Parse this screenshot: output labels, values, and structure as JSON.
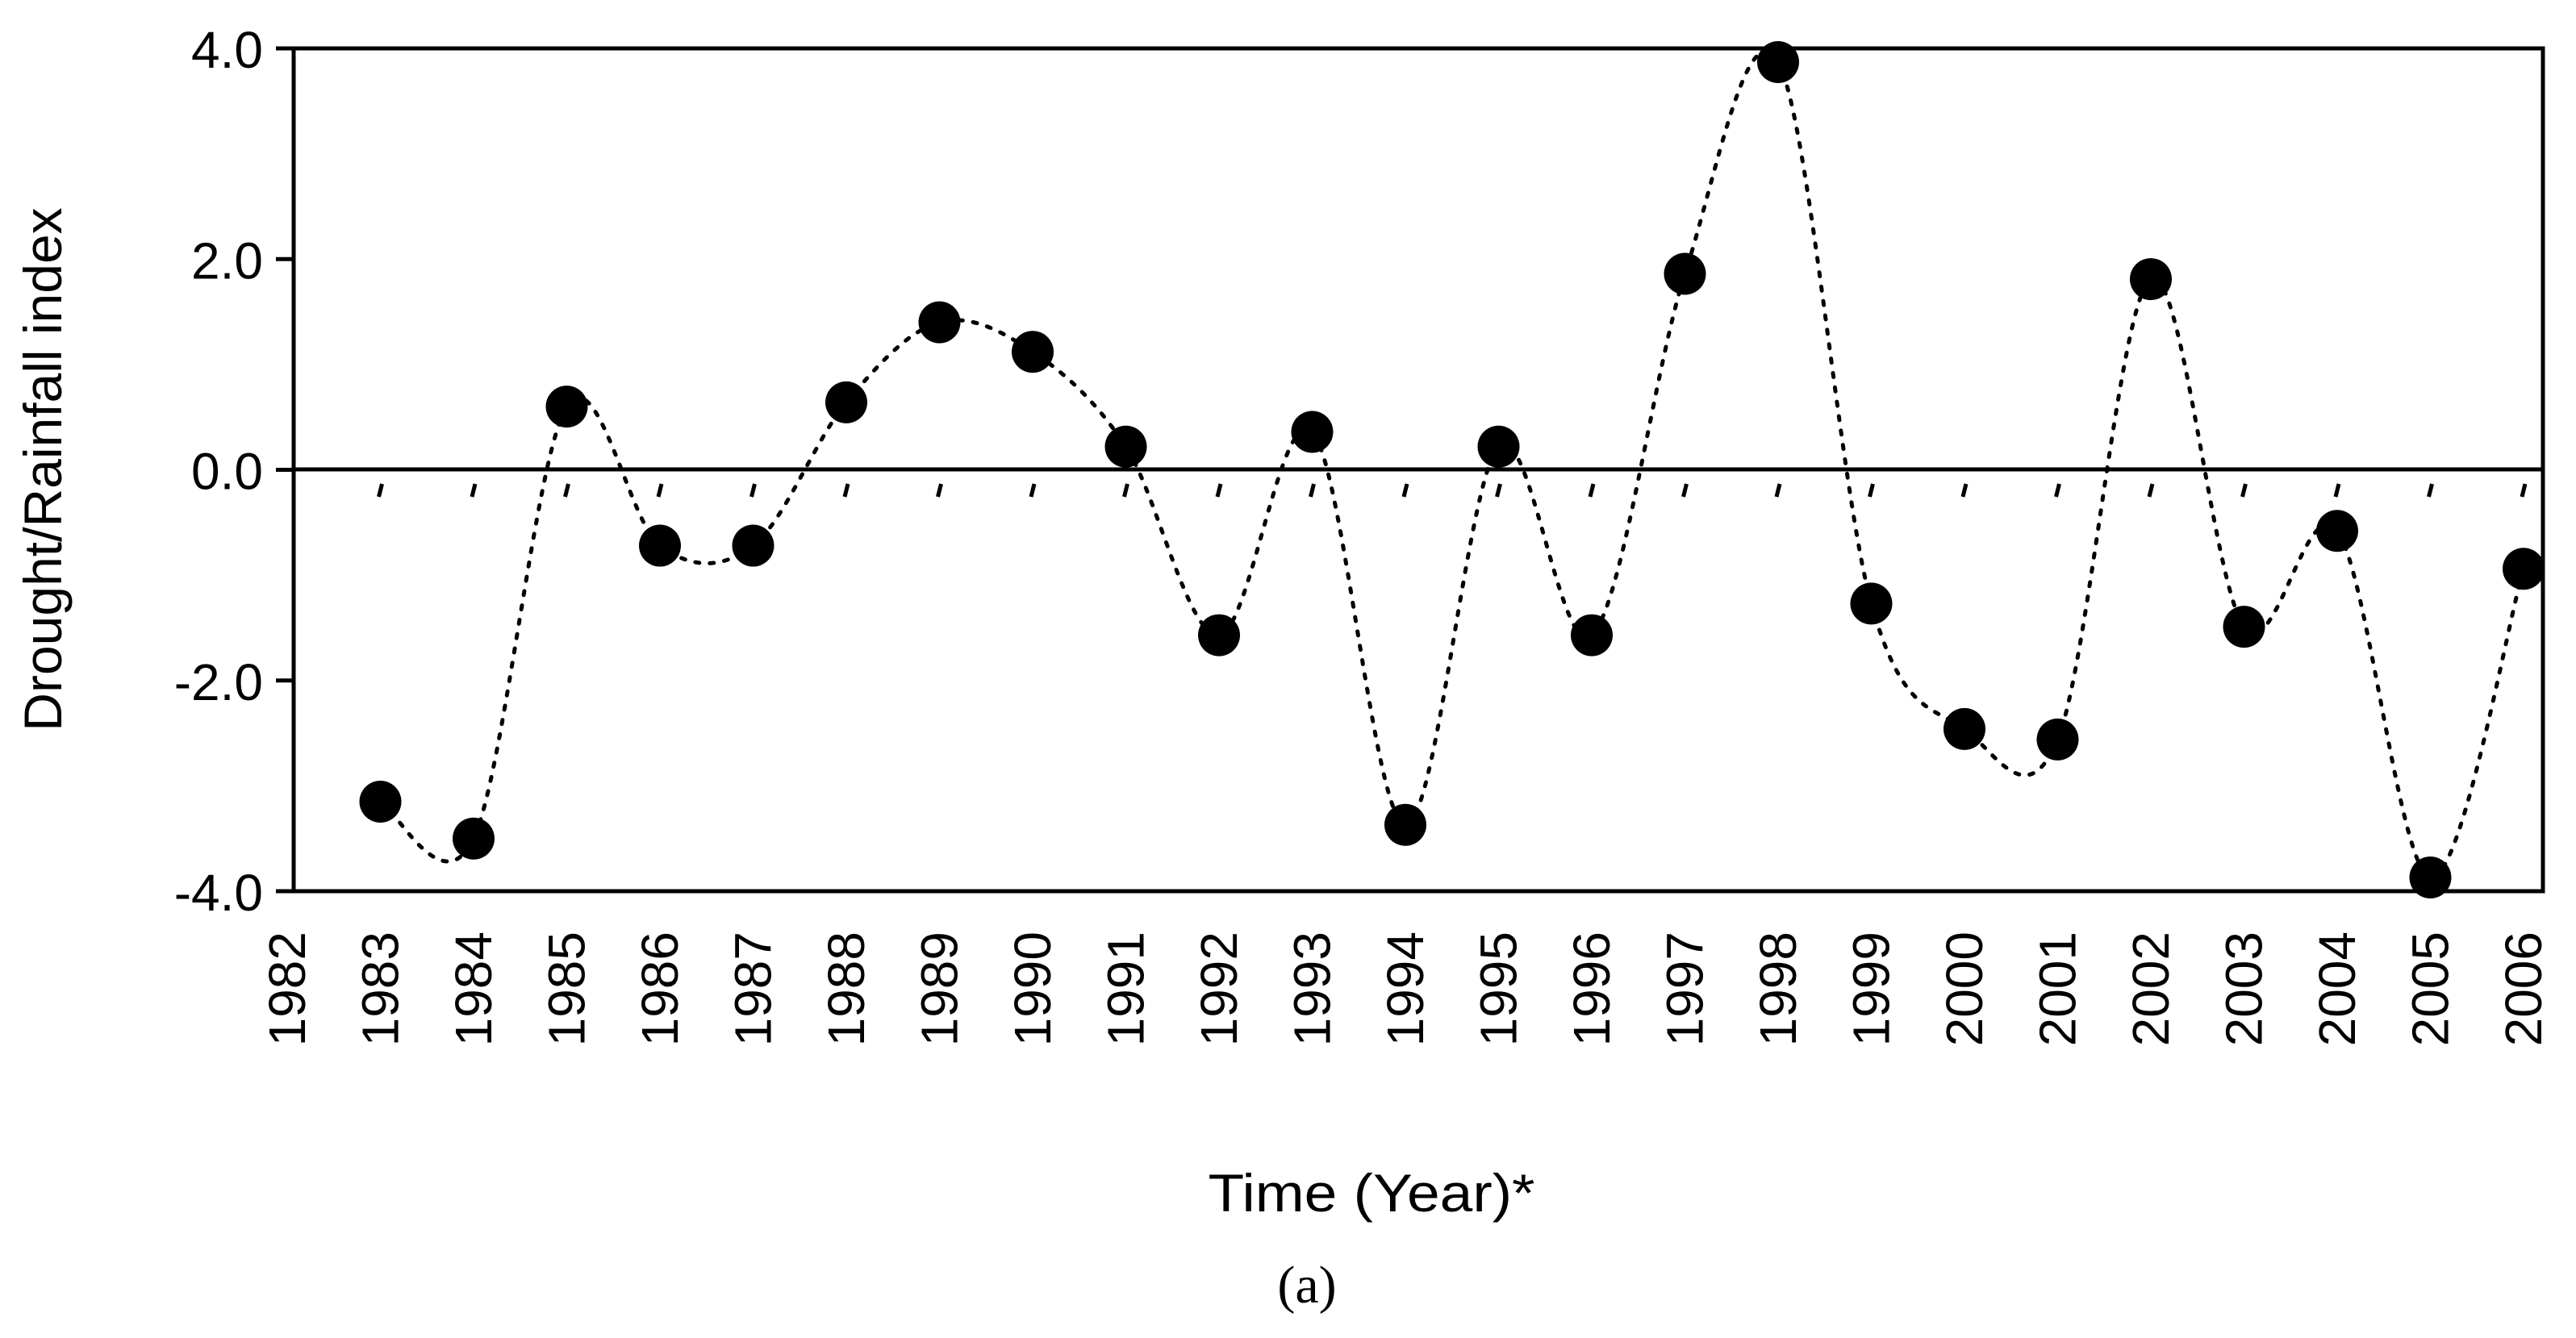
{
  "chart_data": {
    "type": "line",
    "x": [
      1983,
      1984,
      1985,
      1986,
      1987,
      1988,
      1989,
      1990,
      1991,
      1992,
      1993,
      1994,
      1995,
      1996,
      1997,
      1998,
      1999,
      2000,
      2001,
      2002,
      2003,
      2004,
      2005,
      2006
    ],
    "x_tick_labels": [
      "1982",
      "1983",
      "1984",
      "1985",
      "1986",
      "1987",
      "1988",
      "1989",
      "1990",
      "1991",
      "1992",
      "1993",
      "1994",
      "1995",
      "1996",
      "1997",
      "1998",
      "1999",
      "2000",
      "2001",
      "2002",
      "2003",
      "2004",
      "2005",
      "2006"
    ],
    "y_tick_labels": [
      "4.0",
      "2.0",
      "0.0",
      "-2.0",
      "-4.0"
    ],
    "series": [
      {
        "values": [
          -3.15,
          -3.5,
          0.6,
          -0.72,
          -0.72,
          0.64,
          1.4,
          1.12,
          0.22,
          -1.57,
          0.36,
          -3.37,
          0.22,
          -1.57,
          1.86,
          3.87,
          -1.27,
          -2.46,
          -2.56,
          1.81,
          -1.49,
          -0.58,
          -3.87,
          -0.94
        ],
        "line_style": "dotted",
        "marker": "filled-circle",
        "color": "#000000"
      }
    ],
    "xlabel": "Time (Year)*",
    "ylabel": "Drought/Rainfall index",
    "caption": "(a)",
    "xlim": [
      1982,
      2006
    ],
    "ylim": [
      -4,
      4
    ],
    "grid": false,
    "zero_line": true
  }
}
